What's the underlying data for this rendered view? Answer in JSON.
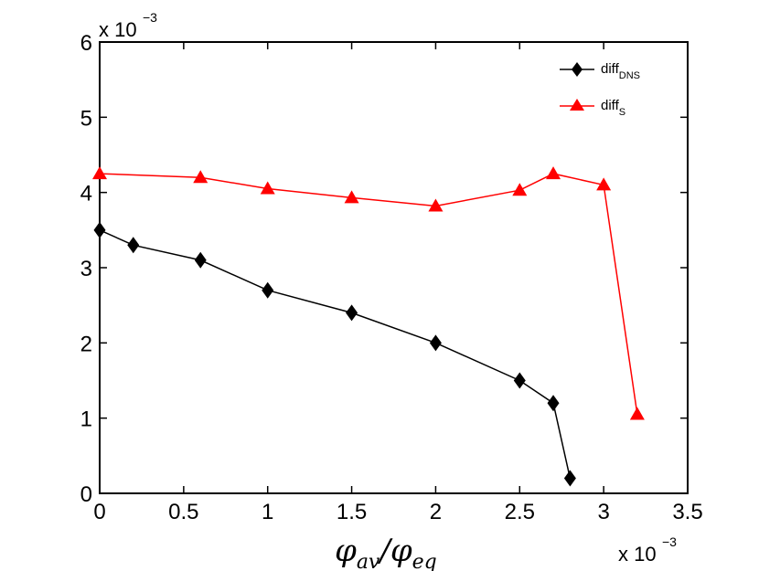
{
  "chart_data": {
    "type": "line",
    "title": "",
    "xlabel": "φ_av/φ_eq",
    "xlabel_parts": {
      "main1": "φ",
      "sub1": "av",
      "sep": "/",
      "main2": "φ",
      "sub2": "eq"
    },
    "ylabel": "",
    "xlim": [
      0,
      3.5
    ],
    "ylim": [
      0,
      6
    ],
    "xticks": [
      0,
      0.5,
      1,
      1.5,
      2,
      2.5,
      3,
      3.5
    ],
    "xtick_labels": [
      "0",
      "0.5",
      "1",
      "1.5",
      "2",
      "2.5",
      "3",
      "3.5"
    ],
    "yticks": [
      0,
      1,
      2,
      3,
      4,
      5,
      6
    ],
    "ytick_labels": [
      "0",
      "1",
      "2",
      "3",
      "4",
      "5",
      "6"
    ],
    "x_exponent": {
      "base": "x 10",
      "power": "−3"
    },
    "y_exponent": {
      "base": "x 10",
      "power": "−3"
    },
    "grid": false,
    "legend_position": "top-right",
    "series": [
      {
        "name": "diff_DNS",
        "label_main": "diff",
        "label_sub": "DNS",
        "color": "#000000",
        "marker": "diamond",
        "x": [
          0,
          0.2,
          0.6,
          1.0,
          1.5,
          2.0,
          2.5,
          2.7,
          2.8
        ],
        "y": [
          3.5,
          3.3,
          3.1,
          2.7,
          2.4,
          2.0,
          1.5,
          1.2,
          0.2
        ]
      },
      {
        "name": "diff_S",
        "label_main": "diff",
        "label_sub": "S",
        "color": "#ff0000",
        "marker": "triangle",
        "x": [
          0,
          0.6,
          1.0,
          1.5,
          2.0,
          2.5,
          2.7,
          3.0,
          3.2
        ],
        "y": [
          4.25,
          4.2,
          4.05,
          3.93,
          3.82,
          4.03,
          4.25,
          4.1,
          1.05
        ]
      }
    ]
  }
}
